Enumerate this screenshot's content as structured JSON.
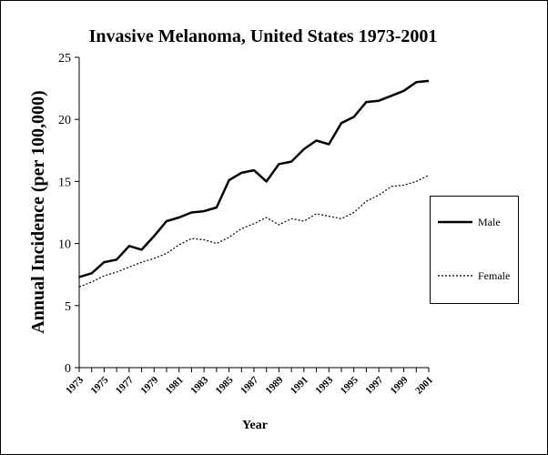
{
  "chart_data": {
    "type": "line",
    "title": "Invasive Melanoma, United States 1973-2001",
    "xlabel": "Year",
    "ylabel": "Annual Incidence (per 100,000)",
    "ylim": [
      0,
      25
    ],
    "yticks": [
      "0",
      "5",
      "10",
      "15",
      "20",
      "25"
    ],
    "xlim": [
      1973,
      2001
    ],
    "xticks": [
      "1973",
      "1975",
      "1977",
      "1979",
      "1981",
      "1983",
      "1985",
      "1987",
      "1989",
      "1991",
      "1993",
      "1995",
      "1997",
      "1999",
      "2001"
    ],
    "grid": false,
    "legend_position": "right",
    "x": [
      1973,
      1974,
      1975,
      1976,
      1977,
      1978,
      1979,
      1980,
      1981,
      1982,
      1983,
      1984,
      1985,
      1986,
      1987,
      1988,
      1989,
      1990,
      1991,
      1992,
      1993,
      1994,
      1995,
      1996,
      1997,
      1998,
      1999,
      2000,
      2001
    ],
    "series": [
      {
        "name": "Male",
        "style": "solid",
        "color": "#000000",
        "values": [
          7.3,
          7.6,
          8.5,
          8.7,
          9.8,
          9.5,
          10.6,
          11.8,
          12.1,
          12.5,
          12.6,
          12.9,
          15.1,
          15.7,
          15.9,
          15.0,
          16.4,
          16.6,
          17.6,
          18.3,
          18.0,
          19.7,
          20.2,
          21.4,
          21.5,
          21.9,
          22.3,
          23.0,
          23.1
        ]
      },
      {
        "name": "Female",
        "style": "dotted",
        "color": "#000000",
        "values": [
          6.5,
          6.9,
          7.4,
          7.7,
          8.1,
          8.5,
          8.8,
          9.2,
          9.9,
          10.4,
          10.3,
          10.0,
          10.5,
          11.2,
          11.6,
          12.1,
          11.5,
          12.0,
          11.8,
          12.4,
          12.2,
          12.0,
          12.5,
          13.4,
          13.9,
          14.6,
          14.7,
          15.0,
          15.5
        ]
      }
    ]
  }
}
